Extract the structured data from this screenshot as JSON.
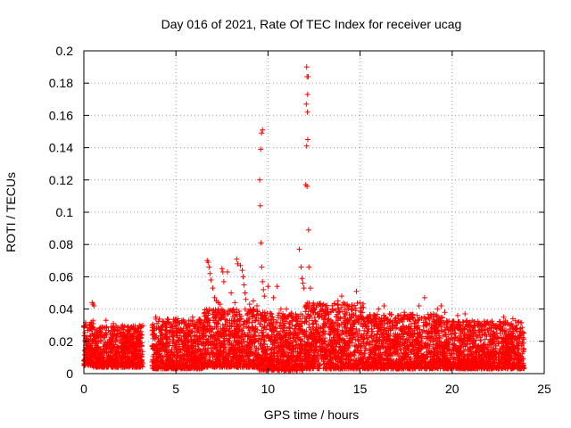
{
  "chart_data": {
    "type": "scatter",
    "title": "Day 016 of 2021, Rate Of TEC Index for receiver ucag",
    "xlabel": "GPS time / hours",
    "ylabel": "ROTI / TECUs",
    "xlim": [
      0,
      25
    ],
    "ylim": [
      0,
      0.2
    ],
    "xticks": [
      0,
      5,
      10,
      15,
      20,
      25
    ],
    "xtick_labels": [
      "0",
      "5",
      "10",
      "15",
      "20",
      "25"
    ],
    "yticks": [
      0,
      0.02,
      0.04,
      0.06,
      0.08,
      0.1,
      0.12,
      0.14,
      0.16,
      0.18,
      0.2
    ],
    "ytick_labels": [
      "0",
      "0.02",
      "0.04",
      "0.06",
      "0.08",
      "0.1",
      "0.12",
      "0.14",
      "0.16",
      "0.18",
      "0.2"
    ],
    "grid": true,
    "marker": "+",
    "color": "#ff0000",
    "baseline_band": {
      "description_values_hours_vs_roti": true,
      "segments": [
        {
          "x": [
            0.0,
            0.5
          ],
          "y": [
            0.005,
            0.033
          ]
        },
        {
          "x": [
            0.5,
            3.2
          ],
          "y": [
            0.004,
            0.03
          ]
        },
        {
          "x": [
            3.7,
            6.5
          ],
          "y": [
            0.003,
            0.034
          ]
        },
        {
          "x": [
            6.5,
            9.5
          ],
          "y": [
            0.004,
            0.04
          ]
        },
        {
          "x": [
            9.5,
            12.0
          ],
          "y": [
            0.002,
            0.038
          ]
        },
        {
          "x": [
            12.0,
            15.2
          ],
          "y": [
            0.003,
            0.044
          ]
        },
        {
          "x": [
            15.2,
            19.5
          ],
          "y": [
            0.003,
            0.037
          ]
        },
        {
          "x": [
            19.5,
            23.9
          ],
          "y": [
            0.003,
            0.033
          ]
        }
      ]
    },
    "series": [
      {
        "name": "ROTI",
        "points": [
          [
            0.45,
            0.044
          ],
          [
            0.5,
            0.043
          ],
          [
            0.55,
            0.042
          ],
          [
            1.2,
            0.033
          ],
          [
            1.6,
            0.031
          ],
          [
            2.1,
            0.03
          ],
          [
            2.6,
            0.029
          ],
          [
            3.9,
            0.035
          ],
          [
            4.4,
            0.031
          ],
          [
            5.1,
            0.034
          ],
          [
            5.9,
            0.035
          ],
          [
            6.7,
            0.07
          ],
          [
            6.75,
            0.069
          ],
          [
            6.8,
            0.066
          ],
          [
            6.85,
            0.062
          ],
          [
            6.9,
            0.058
          ],
          [
            7.0,
            0.053
          ],
          [
            7.1,
            0.047
          ],
          [
            7.2,
            0.045
          ],
          [
            7.3,
            0.044
          ],
          [
            7.4,
            0.043
          ],
          [
            7.5,
            0.065
          ],
          [
            7.55,
            0.063
          ],
          [
            7.6,
            0.057
          ],
          [
            7.8,
            0.063
          ],
          [
            8.0,
            0.05
          ],
          [
            8.2,
            0.044
          ],
          [
            8.3,
            0.071
          ],
          [
            8.35,
            0.068
          ],
          [
            8.5,
            0.067
          ],
          [
            8.6,
            0.064
          ],
          [
            8.65,
            0.06
          ],
          [
            8.7,
            0.055
          ],
          [
            8.75,
            0.05
          ],
          [
            8.8,
            0.046
          ],
          [
            9.0,
            0.043
          ],
          [
            9.2,
            0.045
          ],
          [
            9.4,
            0.042
          ],
          [
            9.65,
            0.149
          ],
          [
            9.7,
            0.151
          ],
          [
            9.6,
            0.139
          ],
          [
            9.55,
            0.12
          ],
          [
            9.58,
            0.104
          ],
          [
            9.62,
            0.081
          ],
          [
            9.66,
            0.066
          ],
          [
            9.7,
            0.057
          ],
          [
            9.75,
            0.052
          ],
          [
            9.8,
            0.048
          ],
          [
            10.0,
            0.054
          ],
          [
            10.3,
            0.047
          ],
          [
            10.5,
            0.054
          ],
          [
            10.7,
            0.04
          ],
          [
            11.0,
            0.04
          ],
          [
            11.7,
            0.077
          ],
          [
            11.8,
            0.066
          ],
          [
            11.85,
            0.059
          ],
          [
            11.9,
            0.056
          ],
          [
            11.95,
            0.053
          ],
          [
            12.1,
            0.19
          ],
          [
            12.12,
            0.184
          ],
          [
            12.18,
            0.184
          ],
          [
            12.15,
            0.173
          ],
          [
            12.08,
            0.167
          ],
          [
            12.14,
            0.162
          ],
          [
            12.16,
            0.145
          ],
          [
            12.1,
            0.141
          ],
          [
            12.05,
            0.117
          ],
          [
            12.12,
            0.116
          ],
          [
            12.2,
            0.089
          ],
          [
            12.22,
            0.066
          ],
          [
            12.3,
            0.053
          ],
          [
            12.35,
            0.041
          ],
          [
            12.5,
            0.04
          ],
          [
            13.5,
            0.04
          ],
          [
            13.8,
            0.045
          ],
          [
            14.0,
            0.048
          ],
          [
            14.3,
            0.042
          ],
          [
            14.8,
            0.051
          ],
          [
            15.0,
            0.044
          ],
          [
            16.0,
            0.04
          ],
          [
            16.3,
            0.042
          ],
          [
            16.6,
            0.037
          ],
          [
            17.4,
            0.038
          ],
          [
            18.2,
            0.042
          ],
          [
            18.5,
            0.047
          ],
          [
            19.2,
            0.04
          ],
          [
            19.4,
            0.042
          ],
          [
            19.6,
            0.038
          ],
          [
            20.3,
            0.036
          ],
          [
            20.7,
            0.037
          ],
          [
            21.5,
            0.031
          ],
          [
            22.0,
            0.03
          ],
          [
            22.8,
            0.035
          ],
          [
            23.3,
            0.034
          ],
          [
            23.7,
            0.028
          ],
          [
            23.9,
            0.025
          ]
        ]
      }
    ]
  }
}
